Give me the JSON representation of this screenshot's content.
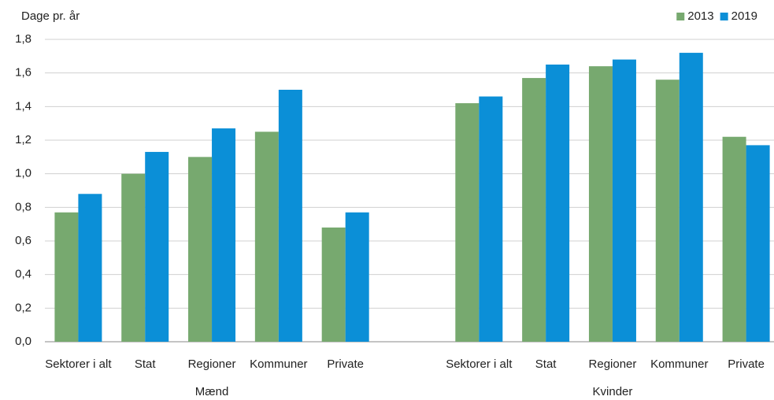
{
  "chart_data": {
    "type": "bar",
    "ylabel": "Dage pr. år",
    "categories": [
      "Sektorer i alt",
      "Stat",
      "Regioner",
      "Kommuner",
      "Private",
      null,
      "Sektorer i alt",
      "Stat",
      "Regioner",
      "Kommuner",
      "Private"
    ],
    "group_labels": [
      "Mænd",
      "Kvinder"
    ],
    "series": [
      {
        "name": "2013",
        "color": "#77a96f",
        "values": [
          0.77,
          1.0,
          1.1,
          1.25,
          0.68,
          null,
          1.42,
          1.57,
          1.64,
          1.56,
          1.22
        ]
      },
      {
        "name": "2019",
        "color": "#0b8fd7",
        "values": [
          0.88,
          1.13,
          1.27,
          1.5,
          0.77,
          null,
          1.46,
          1.65,
          1.68,
          1.72,
          1.17
        ]
      }
    ],
    "ylim": [
      0,
      1.8
    ],
    "yticks": [
      {
        "value": 0,
        "label": "0,0"
      },
      {
        "value": 0.2,
        "label": "0,2"
      },
      {
        "value": 0.4,
        "label": "0,4"
      },
      {
        "value": 0.6,
        "label": "0,6"
      },
      {
        "value": 0.8,
        "label": "0,8"
      },
      {
        "value": 1.0,
        "label": "1,0"
      },
      {
        "value": 1.2,
        "label": "1,2"
      },
      {
        "value": 1.4,
        "label": "1,4"
      },
      {
        "value": 1.6,
        "label": "1,6"
      },
      {
        "value": 1.8,
        "label": "1,8"
      }
    ],
    "grid": true,
    "legend": "top-right"
  }
}
